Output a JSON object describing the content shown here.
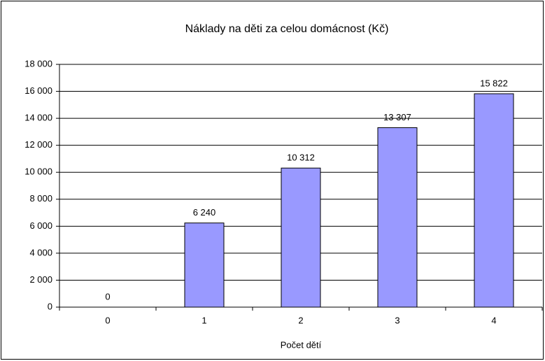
{
  "chart_data": {
    "type": "bar",
    "title": "Náklady na děti za celou domácnost (Kč)",
    "x_label": "Počet dětí",
    "categories": [
      "0",
      "1",
      "2",
      "3",
      "4"
    ],
    "values": [
      0,
      6240,
      10312,
      13307,
      15822
    ],
    "value_labels": [
      "0",
      "6 240",
      "10 312",
      "13 307",
      "15 822"
    ],
    "color": "#9999ff",
    "ylim": [
      0,
      18000
    ],
    "yticks": [
      0,
      {
        "value": 2000,
        "label": "2 000"
      },
      {
        "value": 4000,
        "label": "4 000"
      },
      {
        "value": 6000,
        "label": "6 000"
      },
      {
        "value": 8000,
        "label": "8 000"
      },
      {
        "value": 10000,
        "label": "10 000"
      },
      {
        "value": 12000,
        "label": "12 000"
      },
      {
        "value": 14000,
        "label": "14 000"
      },
      {
        "value": 16000,
        "label": "16 000"
      },
      {
        "value": 18000,
        "label": "18 000"
      }
    ],
    "grid": true
  }
}
